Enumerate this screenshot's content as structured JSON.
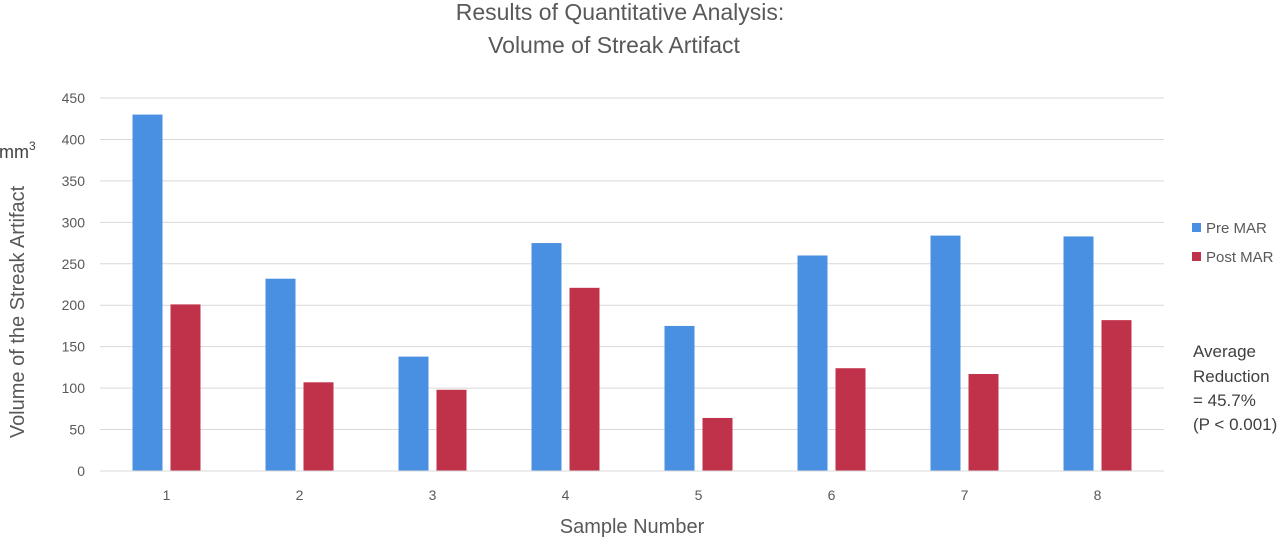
{
  "chart_data": {
    "type": "bar",
    "title_lines": [
      "Results of Quantitative Analysis:",
      "Volume of Streak Artifact"
    ],
    "xlabel": "Sample Number",
    "ylabel": "Volume of the Streak Artifact",
    "unit_label": "mm",
    "unit_superscript": "3",
    "categories": [
      "1",
      "2",
      "3",
      "4",
      "5",
      "6",
      "7",
      "8"
    ],
    "ylim": [
      0,
      450
    ],
    "yticks": [
      0,
      50,
      100,
      150,
      200,
      250,
      300,
      350,
      400,
      450
    ],
    "grid": true,
    "legend_position": "right",
    "series": [
      {
        "name": "Pre MAR",
        "color": "#4A90E2",
        "values": [
          430,
          232,
          138,
          275,
          175,
          260,
          284,
          283
        ]
      },
      {
        "name": "Post MAR",
        "color": "#C0314A",
        "values": [
          201,
          107,
          98,
          221,
          64,
          124,
          117,
          182
        ]
      }
    ],
    "annotation_lines": [
      "Average",
      "Reduction",
      "= 45.7%",
      "(P < 0.001)"
    ]
  }
}
